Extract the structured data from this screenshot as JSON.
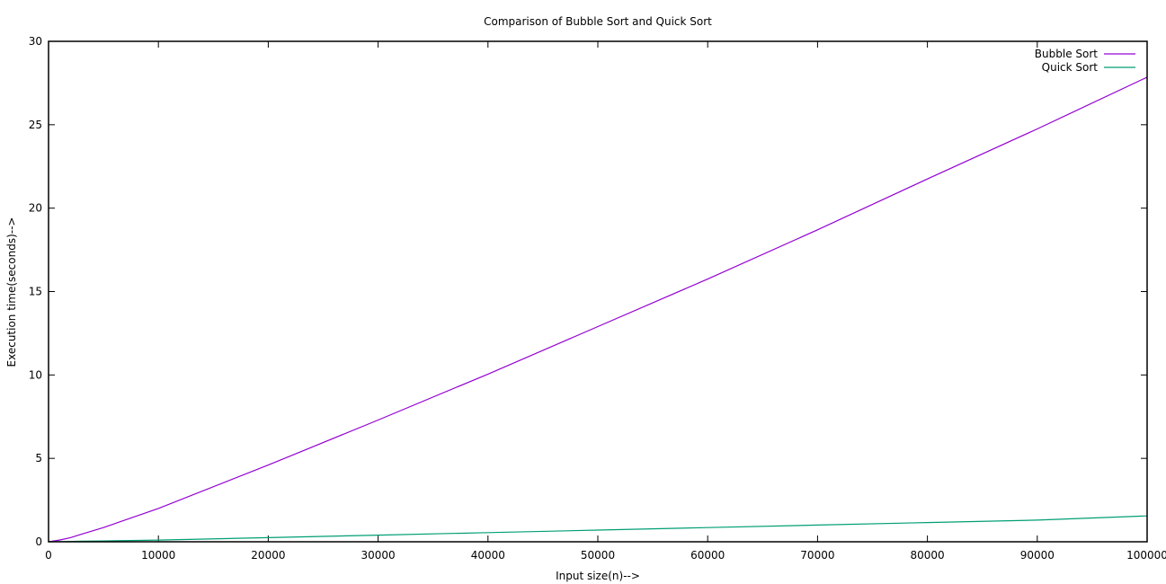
{
  "chart_data": {
    "type": "line",
    "title": "Comparison of Bubble Sort and Quick Sort",
    "xlabel": "Input size(n)-->",
    "ylabel": "Execution time(seconds)-->",
    "xlim": [
      0,
      100000
    ],
    "ylim": [
      0,
      30
    ],
    "xticks": [
      0,
      10000,
      20000,
      30000,
      40000,
      50000,
      60000,
      70000,
      80000,
      90000,
      100000
    ],
    "yticks": [
      0,
      5,
      10,
      15,
      20,
      25,
      30
    ],
    "grid": false,
    "legend_position": "top-right",
    "x": [
      0,
      1000,
      2000,
      3000,
      5000,
      10000,
      20000,
      30000,
      40000,
      50000,
      60000,
      70000,
      80000,
      90000,
      100000
    ],
    "series": [
      {
        "name": "Bubble Sort",
        "color": "#9400d3",
        "values": [
          0,
          0.1,
          0.25,
          0.45,
          0.85,
          2.0,
          4.6,
          7.3,
          10.05,
          12.9,
          15.75,
          18.7,
          21.75,
          24.75,
          27.85
        ]
      },
      {
        "name": "Quick Sort",
        "color": "#009e73",
        "values": [
          0,
          0.01,
          0.02,
          0.03,
          0.05,
          0.1,
          0.25,
          0.4,
          0.55,
          0.7,
          0.85,
          1.0,
          1.15,
          1.3,
          1.55
        ]
      }
    ]
  }
}
